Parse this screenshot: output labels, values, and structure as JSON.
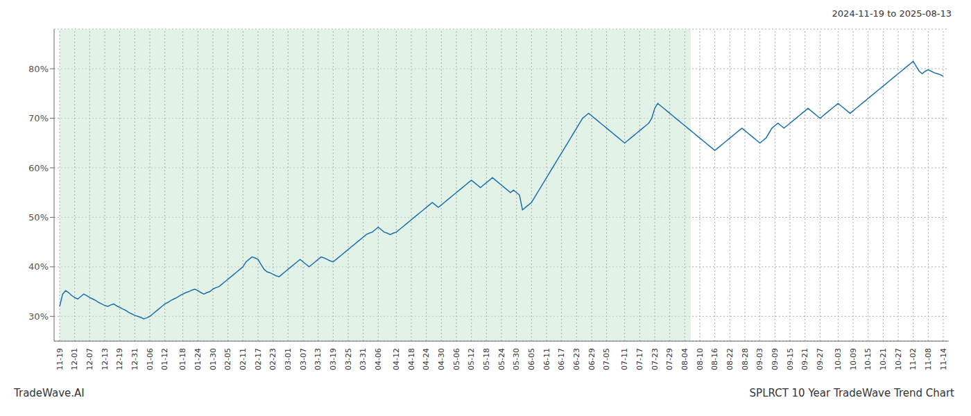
{
  "chart_data": {
    "type": "line",
    "title": "2024-11-19 to 2025-08-13",
    "annotations": [
      "TradeWave.AI",
      "SPLRCT 10 Year TradeWave Trend Chart"
    ],
    "color": "#1a6faf",
    "grid": true,
    "ylim": [
      25,
      88
    ],
    "yticks": [
      {
        "value": 30,
        "label": "30%"
      },
      {
        "value": 40,
        "label": "40%"
      },
      {
        "value": 50,
        "label": "50%"
      },
      {
        "value": 60,
        "label": "60%"
      },
      {
        "value": 70,
        "label": "70%"
      },
      {
        "value": 80,
        "label": "80%"
      }
    ],
    "shaded_span": {
      "from": 0,
      "to": 210,
      "color": "#cce8d4"
    },
    "categories": [
      "11-19",
      null,
      null,
      null,
      null,
      "12-01",
      null,
      null,
      null,
      null,
      "12-07",
      null,
      null,
      null,
      null,
      "12-13",
      null,
      null,
      null,
      null,
      "12-19",
      null,
      null,
      null,
      null,
      "12-31",
      null,
      null,
      null,
      null,
      "01-06",
      null,
      null,
      null,
      null,
      "01-12",
      null,
      null,
      null,
      null,
      null,
      "01-18",
      null,
      null,
      null,
      null,
      "01-24",
      null,
      null,
      null,
      null,
      "01-30",
      null,
      null,
      null,
      null,
      "02-05",
      null,
      null,
      null,
      null,
      "02-11",
      null,
      null,
      null,
      null,
      "02-17",
      null,
      null,
      null,
      null,
      "02-23",
      null,
      null,
      null,
      null,
      "03-01",
      null,
      null,
      null,
      null,
      "03-07",
      null,
      null,
      null,
      null,
      "03-13",
      null,
      null,
      null,
      null,
      "03-19",
      null,
      null,
      null,
      null,
      "03-25",
      null,
      null,
      null,
      null,
      "03-31",
      null,
      null,
      null,
      null,
      "04-06",
      null,
      null,
      null,
      null,
      null,
      "04-12",
      null,
      null,
      null,
      null,
      "04-18",
      null,
      null,
      null,
      null,
      "04-24",
      null,
      null,
      null,
      null,
      "04-30",
      null,
      null,
      null,
      null,
      "05-06",
      null,
      null,
      null,
      null,
      "05-12",
      null,
      null,
      null,
      null,
      "05-18",
      null,
      null,
      null,
      null,
      "05-24",
      null,
      null,
      null,
      null,
      "05-30",
      null,
      null,
      null,
      null,
      "06-05",
      null,
      null,
      null,
      null,
      "06-11",
      null,
      null,
      null,
      null,
      "06-17",
      null,
      null,
      null,
      null,
      "06-23",
      null,
      null,
      null,
      null,
      "06-29",
      null,
      null,
      null,
      null,
      "07-05",
      null,
      null,
      null,
      null,
      null,
      "07-11",
      null,
      null,
      null,
      null,
      "07-17",
      null,
      null,
      null,
      null,
      "07-23",
      null,
      null,
      null,
      null,
      "07-29",
      null,
      null,
      null,
      null,
      "08-04",
      null,
      null,
      null,
      null,
      "08-10",
      null,
      null,
      null,
      null,
      "08-16",
      null,
      null,
      null,
      null,
      "08-22",
      null,
      null,
      null,
      null,
      "08-28",
      null,
      null,
      null,
      null,
      "09-03",
      null,
      null,
      null,
      null,
      "09-09",
      null,
      null,
      null,
      null,
      "09-15",
      null,
      null,
      null,
      null,
      "09-21",
      null,
      null,
      null,
      null,
      "09-27",
      null,
      null,
      null,
      null,
      null,
      "10-03",
      null,
      null,
      null,
      null,
      "10-09",
      null,
      null,
      null,
      null,
      "10-15",
      null,
      null,
      null,
      null,
      "10-21",
      null,
      null,
      null,
      null,
      "10-27",
      null,
      null,
      null,
      null,
      "11-02",
      null,
      null,
      null,
      null,
      "11-08",
      null,
      null,
      null,
      null,
      "11-14"
    ],
    "values": [
      32.0,
      34.5,
      35.2,
      34.8,
      34.2,
      33.8,
      33.5,
      34.0,
      34.5,
      34.2,
      33.8,
      33.5,
      33.2,
      32.8,
      32.5,
      32.2,
      32.0,
      32.3,
      32.5,
      32.1,
      31.8,
      31.5,
      31.2,
      30.8,
      30.5,
      30.2,
      30.0,
      29.8,
      29.5,
      29.7,
      30.0,
      30.5,
      31.0,
      31.5,
      32.0,
      32.5,
      32.8,
      33.2,
      33.5,
      33.8,
      34.2,
      34.5,
      34.8,
      35.0,
      35.3,
      35.5,
      35.2,
      34.8,
      34.5,
      34.8,
      35.0,
      35.5,
      35.8,
      36.0,
      36.5,
      37.0,
      37.5,
      38.0,
      38.5,
      39.0,
      39.5,
      40.0,
      41.0,
      41.5,
      42.0,
      41.8,
      41.5,
      40.5,
      39.5,
      39.0,
      38.8,
      38.5,
      38.2,
      38.0,
      38.5,
      39.0,
      39.5,
      40.0,
      40.5,
      41.0,
      41.5,
      41.0,
      40.5,
      40.0,
      40.5,
      41.0,
      41.5,
      42.0,
      41.8,
      41.5,
      41.2,
      41.0,
      41.5,
      42.0,
      42.5,
      43.0,
      43.5,
      44.0,
      44.5,
      45.0,
      45.5,
      46.0,
      46.5,
      46.8,
      47.0,
      47.5,
      48.0,
      47.5,
      47.0,
      46.8,
      46.5,
      46.8,
      47.0,
      47.5,
      48.0,
      48.5,
      49.0,
      49.5,
      50.0,
      50.5,
      51.0,
      51.5,
      52.0,
      52.5,
      53.0,
      52.5,
      52.0,
      52.5,
      53.0,
      53.5,
      54.0,
      54.5,
      55.0,
      55.5,
      56.0,
      56.5,
      57.0,
      57.5,
      57.0,
      56.5,
      56.0,
      56.5,
      57.0,
      57.5,
      58.0,
      57.5,
      57.0,
      56.5,
      56.0,
      55.5,
      55.0,
      55.5,
      55.0,
      54.5,
      51.5,
      52.0,
      52.5,
      53.0,
      54.0,
      55.0,
      56.0,
      57.0,
      58.0,
      59.0,
      60.0,
      61.0,
      62.0,
      63.0,
      64.0,
      65.0,
      66.0,
      67.0,
      68.0,
      69.0,
      70.0,
      70.5,
      71.0,
      70.5,
      70.0,
      69.5,
      69.0,
      68.5,
      68.0,
      67.5,
      67.0,
      66.5,
      66.0,
      65.5,
      65.0,
      65.5,
      66.0,
      66.5,
      67.0,
      67.5,
      68.0,
      68.5,
      69.0,
      70.0,
      72.0,
      73.0,
      72.5,
      72.0,
      71.5,
      71.0,
      70.5,
      70.0,
      69.5,
      69.0,
      68.5,
      68.0,
      67.5,
      67.0,
      66.5,
      66.0,
      65.5,
      65.0,
      64.5,
      64.0,
      63.5,
      64.0,
      64.5,
      65.0,
      65.5,
      66.0,
      66.5,
      67.0,
      67.5,
      68.0,
      67.5,
      67.0,
      66.5,
      66.0,
      65.5,
      65.0,
      65.5,
      66.0,
      67.0,
      68.0,
      68.5,
      69.0,
      68.5,
      68.0,
      68.5,
      69.0,
      69.5,
      70.0,
      70.5,
      71.0,
      71.5,
      72.0,
      71.5,
      71.0,
      70.5,
      70.0,
      70.5,
      71.0,
      71.5,
      72.0,
      72.5,
      73.0,
      72.5,
      72.0,
      71.5,
      71.0,
      71.5,
      72.0,
      72.5,
      73.0,
      73.5,
      74.0,
      74.5,
      75.0,
      75.5,
      76.0,
      76.5,
      77.0,
      77.5,
      78.0,
      78.5,
      79.0,
      79.5,
      80.0,
      80.5,
      81.0,
      81.5,
      80.5,
      79.5,
      79.0,
      79.5,
      79.8,
      79.5,
      79.2,
      79.0,
      78.8,
      78.5
    ]
  }
}
